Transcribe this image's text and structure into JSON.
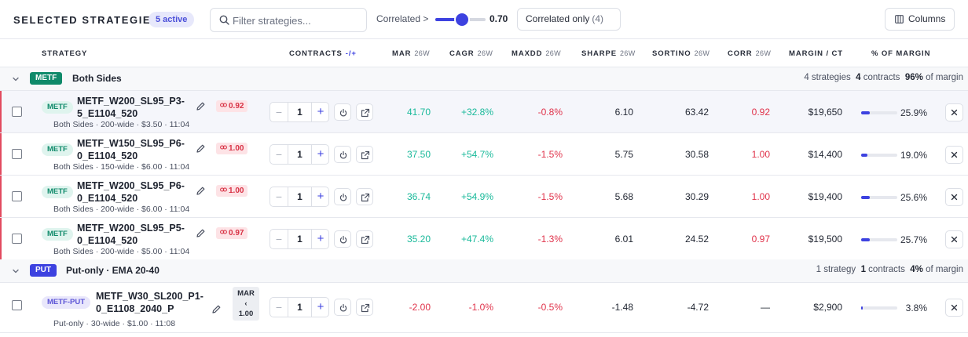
{
  "toolbar": {
    "title": "SELECTED STRATEGIES",
    "active_badge": "5 active",
    "search_placeholder": "Filter strategies...",
    "correlated_label": "Correlated >",
    "correlation_threshold": "0.70",
    "correlation_threshold_fraction": 0.55,
    "correlated_only_label": "Correlated only",
    "correlated_only_count": "(4)",
    "columns_label": "Columns"
  },
  "columns": {
    "strategy": "STRATEGY",
    "contracts": "CONTRACTS",
    "contracts_pm": "-/+",
    "mar": "MAR",
    "cagr": "CAGR",
    "maxdd": "MAXDD",
    "sharpe": "SHARPE",
    "sortino": "SORTINO",
    "corr": "CORR",
    "margin_ct": "MARGIN / CT",
    "pct_margin": "% OF MARGIN",
    "window": "26W"
  },
  "groups": [
    {
      "tag": "METF",
      "tag_color": "#0f8a6a",
      "name": "Both Sides",
      "count": "4 strategies",
      "contracts_num": "4",
      "contracts_word": "contracts",
      "margin_pct": "96%",
      "margin_word": "of margin",
      "rows": [
        {
          "tag": "METF",
          "name": "METF_W200_SL95_P3-5_E1104_520",
          "sub": "Both Sides · 200-wide · $3.50 · 11:04",
          "corr_badge": "0.92",
          "qty": "1",
          "mar": "41.70",
          "cagr": "+32.8%",
          "maxdd": "-0.8%",
          "sharpe": "6.10",
          "sortino": "63.42",
          "corr": "0.92",
          "margin": "$19,650",
          "pct": "25.9%",
          "pct_value": 0.259
        },
        {
          "tag": "METF",
          "name": "METF_W150_SL95_P6-0_E1104_520",
          "sub": "Both Sides · 150-wide · $6.00 · 11:04",
          "corr_badge": "1.00",
          "qty": "1",
          "mar": "37.50",
          "cagr": "+54.7%",
          "maxdd": "-1.5%",
          "sharpe": "5.75",
          "sortino": "30.58",
          "corr": "1.00",
          "margin": "$14,400",
          "pct": "19.0%",
          "pct_value": 0.19
        },
        {
          "tag": "METF",
          "name": "METF_W200_SL95_P6-0_E1104_520",
          "sub": "Both Sides · 200-wide · $6.00 · 11:04",
          "corr_badge": "1.00",
          "qty": "1",
          "mar": "36.74",
          "cagr": "+54.9%",
          "maxdd": "-1.5%",
          "sharpe": "5.68",
          "sortino": "30.29",
          "corr": "1.00",
          "margin": "$19,400",
          "pct": "25.6%",
          "pct_value": 0.256
        },
        {
          "tag": "METF",
          "name": "METF_W200_SL95_P5-0_E1104_520",
          "sub": "Both Sides · 200-wide · $5.00 · 11:04",
          "corr_badge": "0.97",
          "qty": "1",
          "mar": "35.20",
          "cagr": "+47.4%",
          "maxdd": "-1.3%",
          "sharpe": "6.01",
          "sortino": "24.52",
          "corr": "0.97",
          "margin": "$19,500",
          "pct": "25.7%",
          "pct_value": 0.257
        }
      ]
    },
    {
      "tag": "PUT",
      "tag_color": "#3d42e0",
      "name": "Put-only · EMA 20-40",
      "count": "1 strategy",
      "contracts_num": "1",
      "contracts_word": "contracts",
      "margin_pct": "4%",
      "margin_word": "of margin",
      "rows": [
        {
          "tag": "METF-PUT",
          "name": "METF_W30_SL200_P1-0_E1108_2040_P",
          "sub": "Put-only · 30-wide · $1.00 · 11:08",
          "mar_badge_1": "MAR",
          "mar_badge_2": "‹",
          "mar_badge_3": "1.00",
          "qty": "1",
          "mar": "-2.00",
          "cagr": "-1.0%",
          "maxdd": "-0.5%",
          "sharpe": "-1.48",
          "sortino": "-4.72",
          "corr": "—",
          "margin": "$2,900",
          "pct": "3.8%",
          "pct_value": 0.038
        }
      ]
    }
  ]
}
